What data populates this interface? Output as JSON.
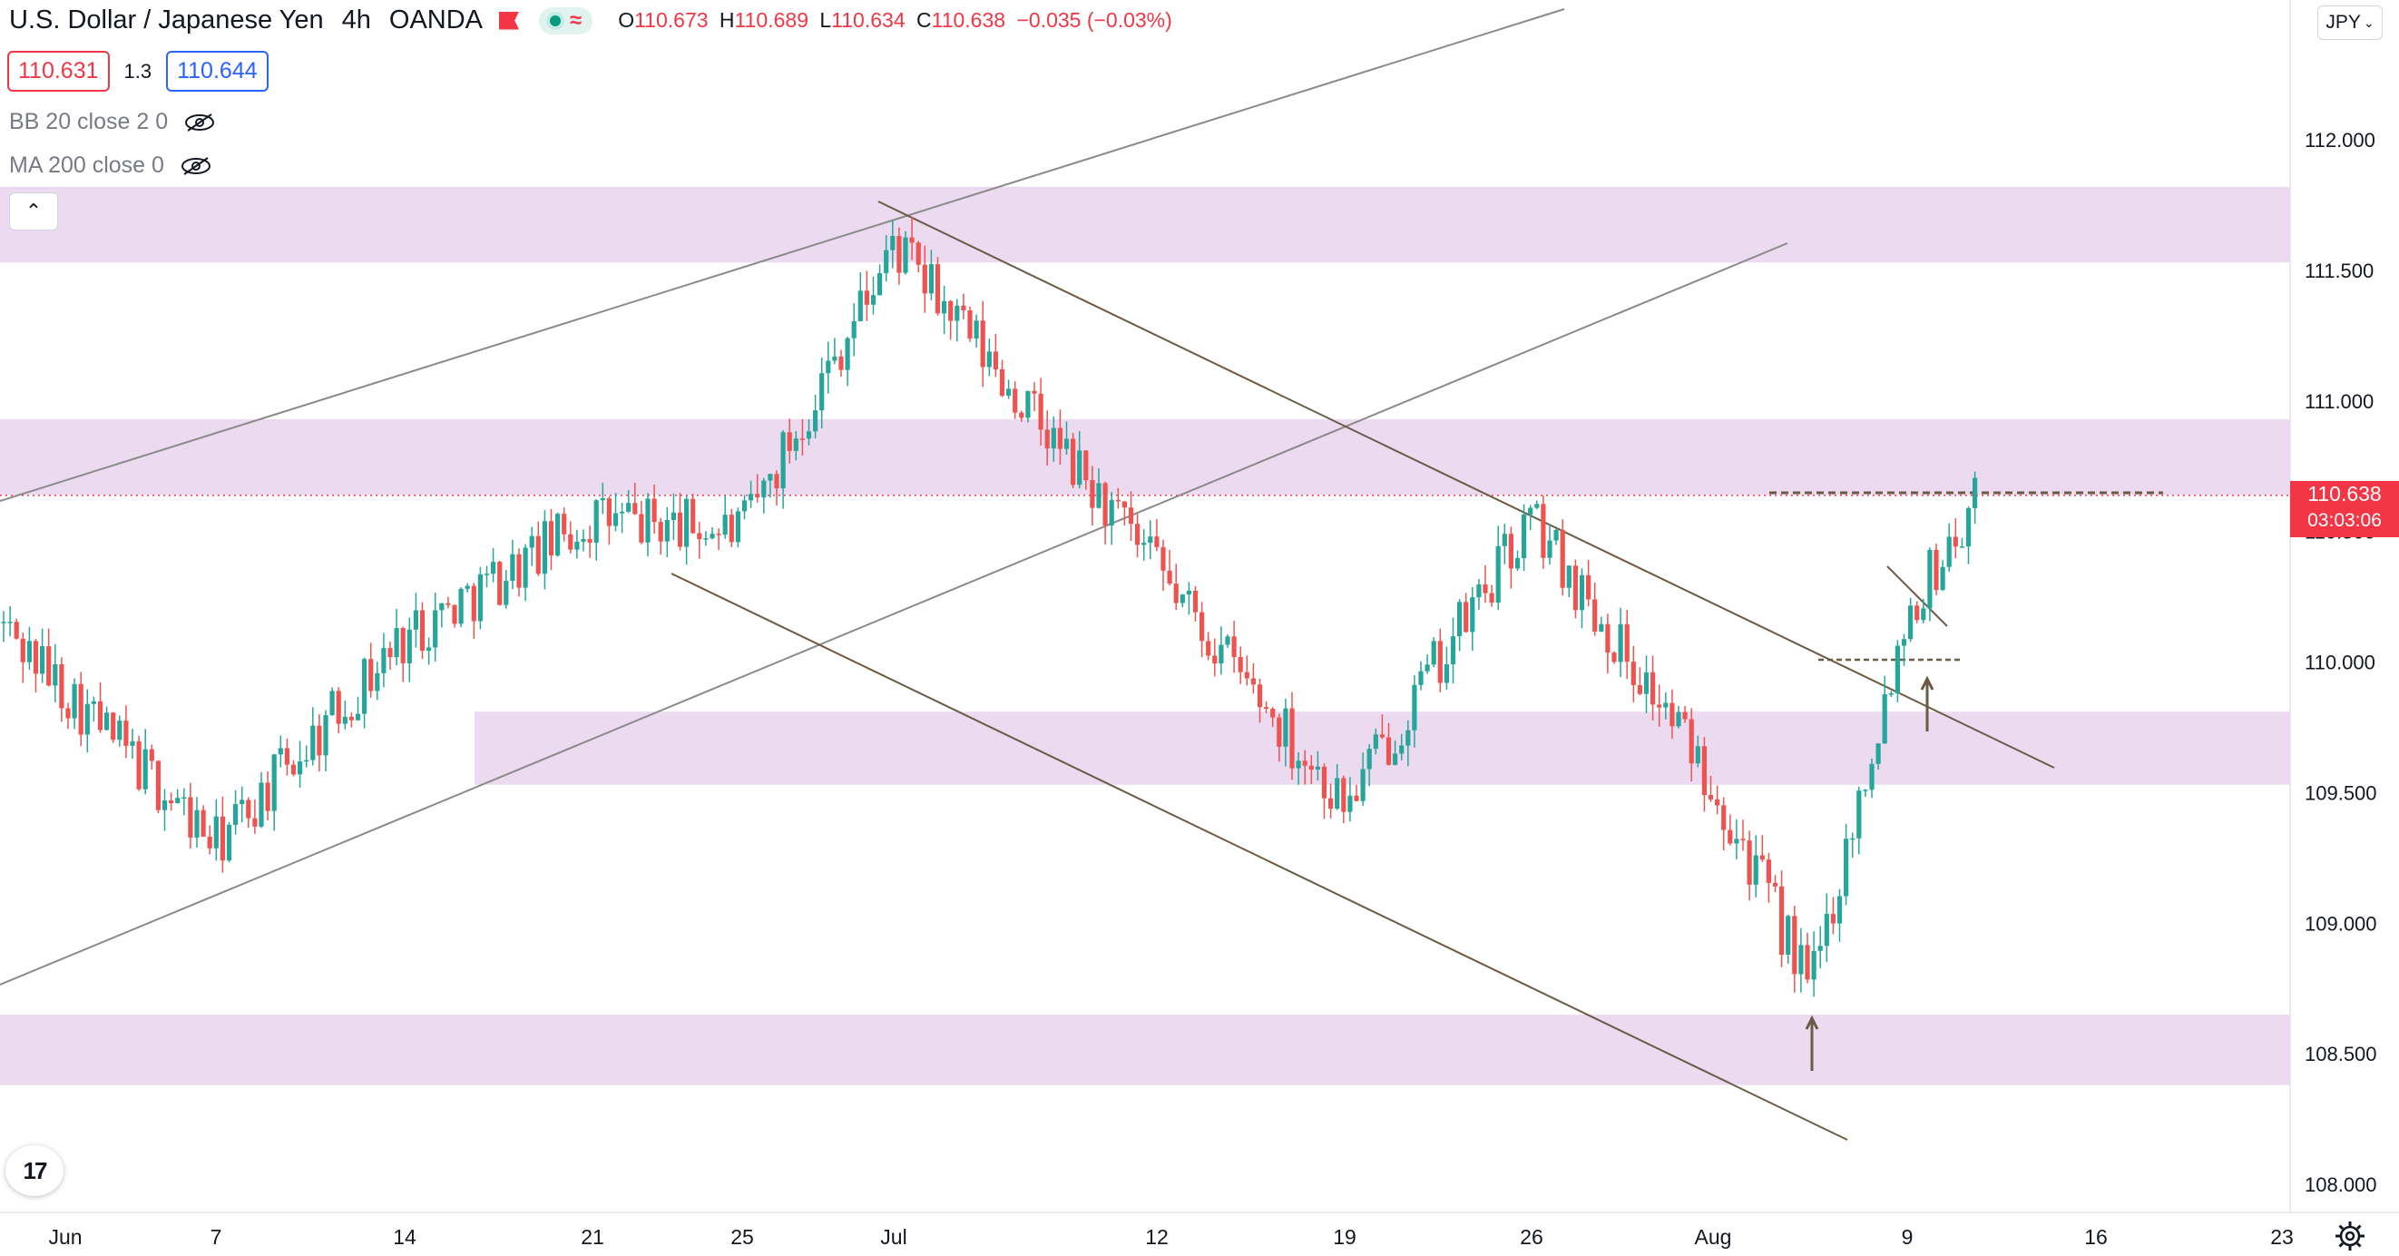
{
  "header": {
    "symbol_title": "U.S. Dollar / Japanese Yen",
    "interval": "4h",
    "source": "OANDA",
    "ohlc": {
      "o_key": "O",
      "o": "110.673",
      "h_key": "H",
      "h": "110.689",
      "l_key": "L",
      "l": "110.634",
      "c_key": "C",
      "c": "110.638",
      "change": "−0.035 (−0.03%)"
    },
    "sell_price": "110.631",
    "spread": "1.3",
    "buy_price": "110.644"
  },
  "indicators": [
    {
      "label": "BB 20 close 2 0"
    },
    {
      "label": "MA 200 close 0"
    }
  ],
  "currency_button": "JPY",
  "last_price": {
    "price": "110.638",
    "countdown": "03:03:06"
  },
  "icons": {
    "collapse": "chevron-up-icon",
    "eye": "eye-off-icon",
    "logo": "tradingview-logo",
    "settings": "gear-icon",
    "dropdown": "chevron-down-icon"
  },
  "colors": {
    "up": "#26a69a",
    "down": "#ef5350",
    "zone": "#e8d3ed",
    "trendline": "#6b5a44",
    "last_price": "#f23645",
    "sell_border": "#f23645",
    "buy_border": "#2962ff"
  },
  "chart_data": {
    "type": "candlestick",
    "symbol": "USDJPY",
    "y_axis": {
      "ticks": [
        "112.000",
        "111.500",
        "111.000",
        "110.500",
        "110.000",
        "109.500",
        "109.000",
        "108.500",
        "108.000"
      ],
      "ylim": [
        107.95,
        112.5
      ]
    },
    "x_axis": {
      "ticks": [
        "Jun",
        "7",
        "14",
        "21",
        "25",
        "Jul",
        "12",
        "19",
        "26",
        "Aug",
        "9",
        "16",
        "23"
      ]
    },
    "zones": [
      {
        "from": 111.53,
        "to": 111.82,
        "start_label": "Jun"
      },
      {
        "from": 110.64,
        "to": 110.93,
        "start_label": "Jun"
      },
      {
        "from": 109.53,
        "to": 109.81,
        "start_label": "14"
      },
      {
        "from": 108.38,
        "to": 108.65,
        "start_label": "Jun"
      }
    ],
    "close_path": [
      [
        "Jun",
        110.15
      ],
      [
        "7",
        109.3
      ],
      [
        "14",
        110.1
      ],
      [
        "21",
        110.55
      ],
      [
        "25",
        110.5
      ],
      [
        "Jul",
        111.6
      ],
      [
        "12",
        110.35
      ],
      [
        "19",
        109.45
      ],
      [
        "26",
        110.55
      ],
      [
        "Aug",
        109.55
      ],
      [
        "Aug+3",
        108.75
      ],
      [
        "9",
        110.2
      ],
      [
        "10",
        110.64
      ]
    ],
    "last": {
      "o": 110.673,
      "h": 110.689,
      "l": 110.634,
      "c": 110.638
    }
  }
}
